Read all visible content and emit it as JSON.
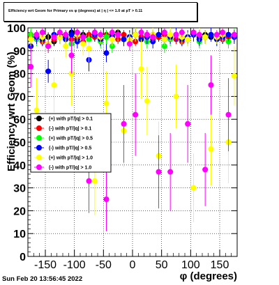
{
  "title": "Efficiency wrt Geom for Primary vs φ (degrees) at | η | <= 1.0 at pT > 0.11",
  "footer": "Sun Feb 20 13:56:45 2022",
  "chart_data": {
    "type": "scatter",
    "xlabel": "φ (degrees)",
    "ylabel": "Efficiency wrt Geom (%)",
    "xlim": [
      -180,
      180
    ],
    "ylim": [
      0,
      100
    ],
    "xticks": [
      -150,
      -100,
      -50,
      0,
      50,
      100,
      150
    ],
    "yticks": [
      0,
      10,
      20,
      30,
      40,
      50,
      60,
      70,
      80,
      90,
      100
    ],
    "grid": true,
    "legend_position": "left-middle",
    "series": [
      {
        "name": "(+) with pT/|q| > 0.1",
        "color": "#000000",
        "x": [
          -175,
          -165,
          -155,
          -145,
          -135,
          -125,
          -115,
          -105,
          -95,
          -85,
          -75,
          -65,
          -55,
          -45,
          -35,
          -25,
          -15,
          -5,
          5,
          15,
          25,
          35,
          45,
          55,
          65,
          75,
          85,
          95,
          105,
          115,
          125,
          135,
          145,
          155,
          165,
          175
        ],
        "y": [
          97,
          96,
          95,
          96,
          94,
          97,
          96,
          98,
          95,
          97,
          96,
          97,
          95,
          96,
          97,
          98,
          95,
          96,
          97,
          95,
          96,
          97,
          96,
          95,
          96,
          97,
          96,
          95,
          97,
          96,
          97,
          96,
          95,
          96,
          97,
          96
        ],
        "err": [
          2,
          2,
          2,
          2,
          2,
          2,
          2,
          2,
          2,
          2,
          2,
          2,
          2,
          2,
          2,
          2,
          2,
          2,
          2,
          2,
          2,
          2,
          2,
          2,
          2,
          2,
          2,
          2,
          2,
          2,
          2,
          2,
          2,
          2,
          2,
          2
        ]
      },
      {
        "name": "(-) with pT/|q| > 0.1",
        "color": "#ff0000",
        "x": [
          -175,
          -165,
          -155,
          -145,
          -135,
          -125,
          -115,
          -105,
          -95,
          -85,
          -75,
          -65,
          -55,
          -45,
          -35,
          -25,
          -15,
          -5,
          5,
          15,
          25,
          35,
          45,
          55,
          65,
          75,
          85,
          95,
          105,
          115,
          125,
          135,
          145,
          155,
          165,
          175
        ],
        "y": [
          96,
          97,
          94,
          92,
          95,
          96,
          97,
          95,
          96,
          94,
          97,
          96,
          95,
          97,
          96,
          95,
          97,
          96,
          94,
          96,
          97,
          95,
          96,
          97,
          96,
          95,
          94,
          96,
          97,
          95,
          96,
          97,
          96,
          95,
          96,
          97
        ],
        "err": [
          2,
          2,
          2,
          2,
          2,
          2,
          2,
          2,
          2,
          2,
          2,
          2,
          2,
          2,
          2,
          2,
          2,
          2,
          2,
          2,
          2,
          2,
          2,
          2,
          2,
          2,
          2,
          2,
          2,
          2,
          2,
          2,
          2,
          2,
          2,
          2
        ]
      },
      {
        "name": "(+) with pT/|q| > 0.5",
        "color": "#00ff00",
        "x": [
          -175,
          -165,
          -155,
          -145,
          -135,
          -125,
          -115,
          -105,
          -95,
          -85,
          -75,
          -65,
          -55,
          -45,
          -35,
          -25,
          -15,
          -5,
          5,
          15,
          25,
          35,
          45,
          55,
          65,
          75,
          85,
          95,
          105,
          115,
          125,
          135,
          145,
          155,
          165,
          175
        ],
        "y": [
          97,
          95,
          96,
          92,
          97,
          96,
          95,
          93,
          97,
          96,
          95,
          97,
          94,
          96,
          92,
          97,
          95,
          96,
          97,
          95,
          94,
          96,
          97,
          92,
          95,
          97,
          96,
          95,
          97,
          94,
          96,
          97,
          95,
          96,
          94,
          97
        ],
        "err": [
          3,
          3,
          3,
          3,
          3,
          3,
          3,
          3,
          3,
          3,
          3,
          3,
          3,
          3,
          3,
          3,
          3,
          3,
          3,
          3,
          3,
          3,
          3,
          3,
          3,
          3,
          3,
          3,
          3,
          3,
          3,
          3,
          3,
          3,
          3,
          3
        ]
      },
      {
        "name": "(-) with pT/|q| > 0.5",
        "color": "#0000ff",
        "x": [
          -175,
          -165,
          -155,
          -145,
          -135,
          -125,
          -115,
          -105,
          -95,
          -85,
          -75,
          -65,
          -55,
          -45,
          -35,
          -25,
          -15,
          -5,
          5,
          15,
          25,
          35,
          45,
          55,
          65,
          75,
          85,
          95,
          105,
          115,
          125,
          135,
          145,
          155,
          165,
          175
        ],
        "y": [
          92,
          96,
          95,
          81,
          97,
          96,
          95,
          97,
          94,
          96,
          86,
          97,
          95,
          89,
          96,
          97,
          95,
          96,
          97,
          95,
          96,
          94,
          97,
          95,
          96,
          97,
          95,
          96,
          97,
          95,
          96,
          97,
          95,
          96,
          97,
          96
        ],
        "err": [
          3,
          3,
          3,
          5,
          3,
          3,
          3,
          3,
          3,
          3,
          5,
          3,
          3,
          4,
          3,
          3,
          3,
          3,
          3,
          3,
          3,
          3,
          3,
          3,
          3,
          3,
          3,
          3,
          3,
          3,
          3,
          3,
          3,
          3,
          3,
          3
        ]
      },
      {
        "name": "(+) with pT/|q| > 1.0",
        "color": "#ffff00",
        "x": [
          -175,
          -165,
          -155,
          -145,
          -135,
          -125,
          -115,
          -105,
          -95,
          -85,
          -75,
          -65,
          -55,
          -45,
          -35,
          -25,
          -15,
          -5,
          5,
          15,
          25,
          35,
          45,
          55,
          65,
          75,
          85,
          95,
          105,
          115,
          125,
          135,
          145,
          155,
          165,
          175
        ],
        "y": [
          95,
          64,
          96,
          93,
          75,
          96,
          92,
          80,
          97,
          93,
          91,
          33,
          96,
          67,
          95,
          97,
          55,
          95,
          97,
          82,
          68,
          97,
          44,
          95,
          97,
          70,
          96,
          95,
          30,
          97,
          96,
          47,
          96,
          97,
          50,
          79
        ],
        "err": [
          3,
          14,
          3,
          4,
          12,
          3,
          5,
          14,
          3,
          5,
          6,
          15,
          3,
          14,
          3,
          3,
          16,
          3,
          3,
          13,
          15,
          3,
          15,
          3,
          3,
          14,
          3,
          3,
          15,
          3,
          3,
          16,
          3,
          3,
          18,
          13
        ]
      },
      {
        "name": "(-) with pT/|q| > 1.0",
        "color": "#ff00ff",
        "x": [
          -175,
          -165,
          -155,
          -145,
          -135,
          -125,
          -115,
          -105,
          -95,
          -85,
          -75,
          -65,
          -55,
          -45,
          -35,
          -25,
          -15,
          -5,
          5,
          15,
          25,
          35,
          45,
          55,
          65,
          75,
          85,
          95,
          105,
          115,
          125,
          135,
          145,
          155,
          165,
          175
        ],
        "y": [
          83,
          97,
          98,
          92,
          96,
          98,
          97,
          88,
          98,
          96,
          33,
          98,
          97,
          25,
          98,
          97,
          58,
          93,
          62,
          98,
          97,
          96,
          37,
          98,
          37,
          97,
          98,
          58,
          98,
          97,
          38,
          75,
          97,
          98,
          62,
          97
        ],
        "err": [
          9,
          2,
          2,
          3,
          2,
          2,
          2,
          8,
          2,
          2,
          14,
          2,
          2,
          14,
          2,
          2,
          17,
          3,
          18,
          2,
          2,
          2,
          16,
          2,
          17,
          2,
          2,
          17,
          2,
          2,
          16,
          13,
          2,
          2,
          16,
          2
        ]
      }
    ]
  }
}
